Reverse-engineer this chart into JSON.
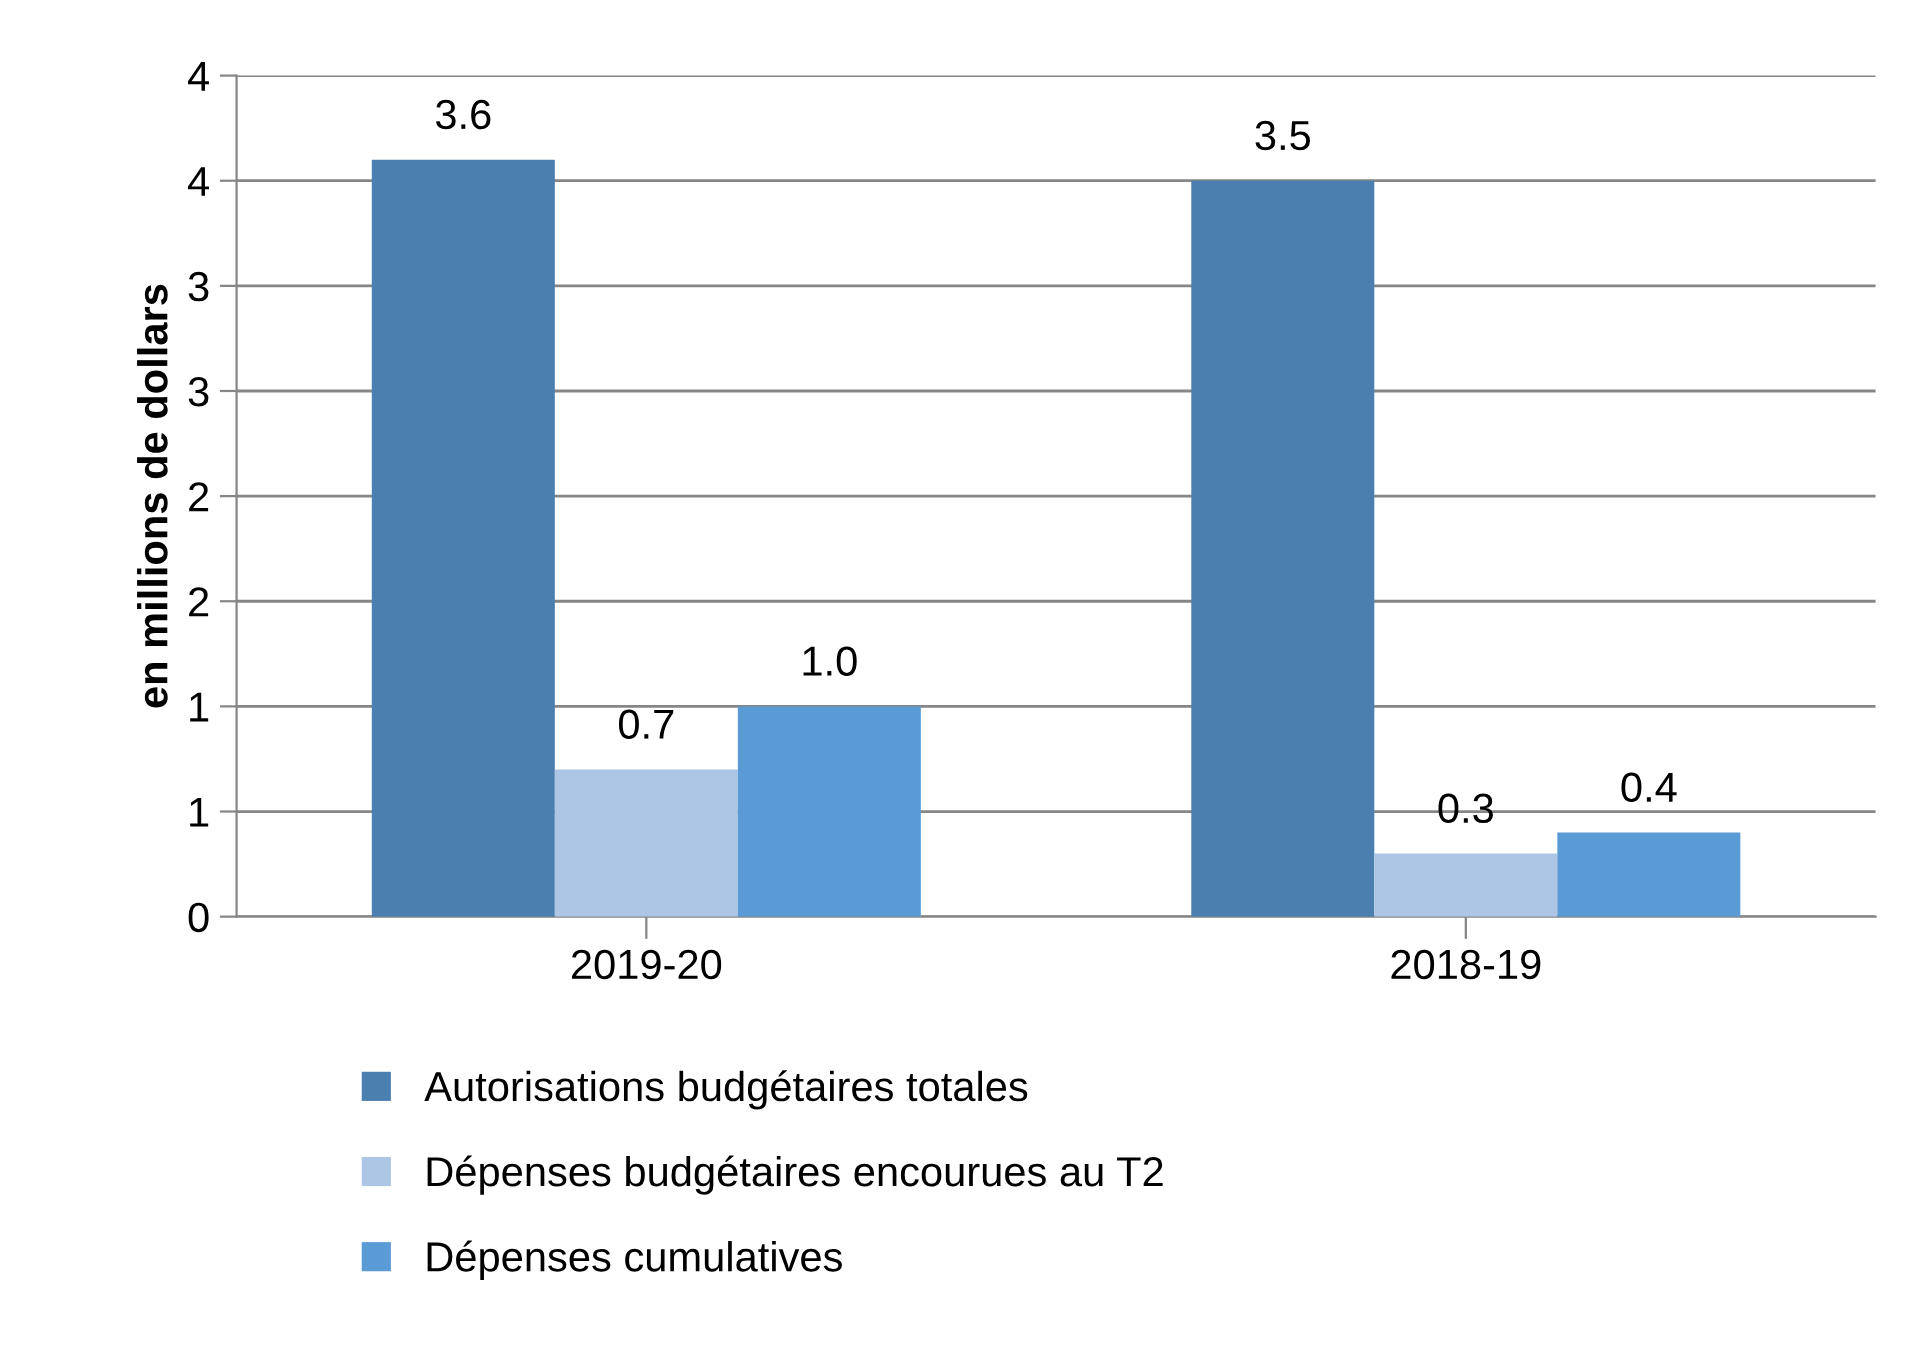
{
  "chart_data": {
    "type": "bar",
    "ylabel": "en millions de dollars",
    "categories": [
      "2019-20",
      "2018-19"
    ],
    "series": [
      {
        "name": "Autorisations budgétaires totales",
        "color": "#4a7fb0",
        "values": [
          3.6,
          3.5
        ],
        "value_labels": [
          "3.6",
          "3.5"
        ]
      },
      {
        "name": "Dépenses budgétaires encourues au T2",
        "color": "#adc6e5",
        "values": [
          0.7,
          0.3
        ],
        "value_labels": [
          "0.7",
          "0.3"
        ]
      },
      {
        "name": "Dépenses cumulatives",
        "color": "#5b9bd5",
        "values": [
          1.0,
          0.4
        ],
        "value_labels": [
          "1.0",
          "0.4"
        ]
      }
    ],
    "ylim": [
      0,
      4
    ],
    "yticks": [
      0,
      {
        "value": 0.5,
        "label": "1"
      },
      1,
      {
        "value": 1.5,
        "label": "2"
      },
      2,
      {
        "value": 2.5,
        "label": "3"
      },
      3,
      {
        "value": 3.5,
        "label": "4"
      },
      4
    ],
    "grid": "y",
    "legend": "bottom"
  }
}
